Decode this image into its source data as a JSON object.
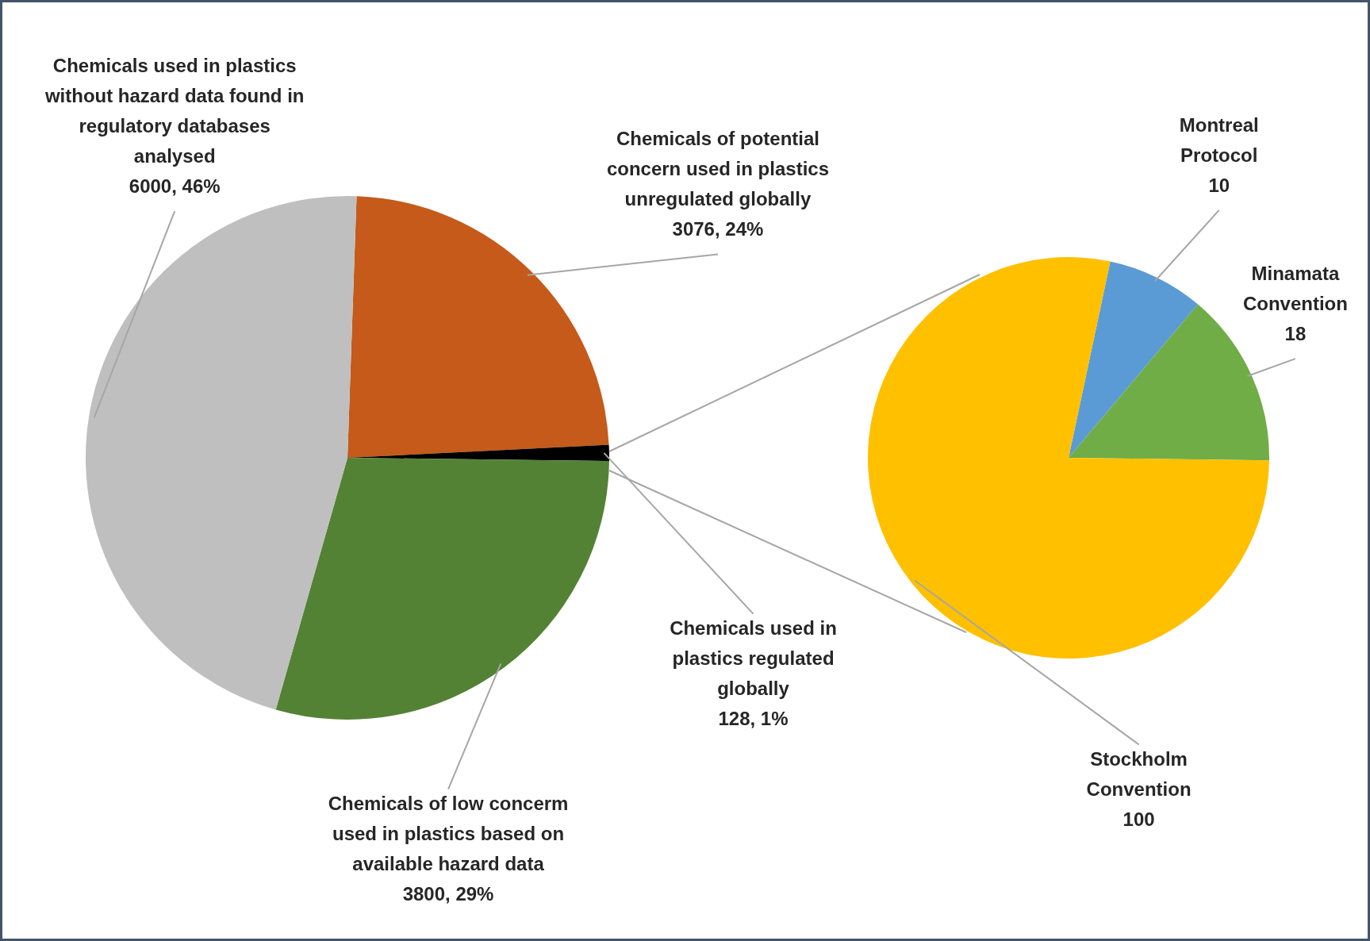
{
  "chart_data": [
    {
      "type": "pie",
      "categories": [
        "Chemicals of potential concern used in plastics unregulated globally",
        "Chemicals used in plastics regulated globally",
        "Chemicals of low concerm used in plastics based on available hazard data",
        "Chemicals used in plastics without hazard data found in regulatory databases analysed"
      ],
      "values": [
        3076,
        128,
        3800,
        6000
      ],
      "colors": [
        "#c55a1a",
        "#000000",
        "#548235",
        "#bfbfbf"
      ],
      "value_labels": [
        "3076, 24%",
        "128, 1%",
        "3800, 29%",
        "6000, 46%"
      ],
      "legend": false
    },
    {
      "type": "pie",
      "categories": [
        "Montreal Protocol",
        "Minamata Convention",
        "Stockholm Convention"
      ],
      "values": [
        10,
        18,
        100
      ],
      "colors": [
        "#5b9bd5",
        "#70ad47",
        "#ffc000"
      ],
      "data_labels": true,
      "legend": false
    }
  ]
}
